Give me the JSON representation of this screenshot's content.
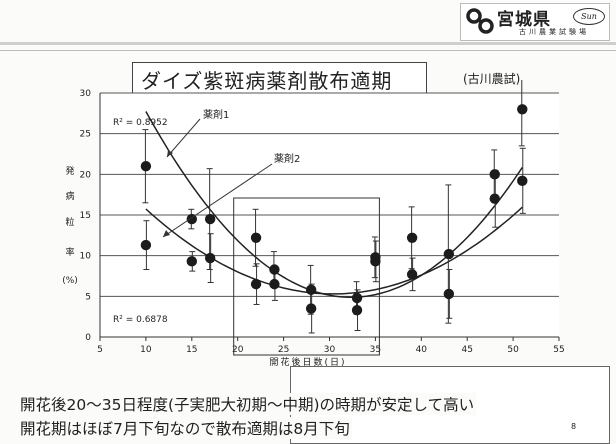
{
  "logo": {
    "org": "宮城県",
    "oval_text": "Sun",
    "sub": "古川農業試験場"
  },
  "title": "ダイズ紫斑病薬剤散布適期",
  "source": "(古川農試)",
  "chart_data": {
    "type": "scatter",
    "xlabel": "開花後日数(日)",
    "ylabel": [
      "発",
      "病",
      "粒",
      "率",
      "(%)"
    ],
    "xlim": [
      5,
      55
    ],
    "ylim": [
      0,
      30
    ],
    "x_ticks": [
      5,
      10,
      15,
      20,
      25,
      30,
      35,
      40,
      45,
      50,
      55
    ],
    "y_ticks": [
      0,
      5,
      10,
      15,
      20,
      25,
      30
    ],
    "grid": true,
    "highlight_range_x": [
      20,
      35
    ],
    "annotations": [
      "R² = 0.8952",
      "R² = 0.6878"
    ],
    "series": [
      {
        "name": "薬剤1",
        "x": [
          10,
          15,
          17,
          22,
          24,
          28,
          33,
          35,
          39,
          43,
          48,
          51
        ],
        "y": [
          21,
          14.5,
          14.5,
          12.2,
          8.3,
          5.8,
          4.8,
          9.8,
          12.2,
          10.2,
          20,
          28
        ],
        "err": [
          4.5,
          1.2,
          6.2,
          3.5,
          2.2,
          3,
          2,
          2.5,
          3.8,
          8.5,
          3,
          4.5
        ],
        "trend": [
          0.0458,
          -2.9615,
          52.76
        ]
      },
      {
        "name": "薬剤2",
        "x": [
          10,
          15,
          17,
          22,
          24,
          28,
          33,
          35,
          39,
          43,
          48,
          51
        ],
        "y": [
          11.3,
          9.3,
          9.7,
          6.5,
          6.5,
          3.5,
          3.3,
          9.3,
          7.7,
          5.3,
          17,
          19.2
        ],
        "err": [
          3,
          1.2,
          3,
          2.5,
          2,
          3,
          2.5,
          2.5,
          2,
          3,
          3.5,
          4
        ],
        "trend": [
          0.0251,
          -1.5257,
          28.48
        ]
      }
    ]
  },
  "bottom": {
    "line1": "開花後20～35日程度(子実肥大初期～中期)の時期が安定して高い",
    "line2": "開花期はほぼ7月下旬なので散布適期は8月下旬"
  },
  "page_number": "8"
}
